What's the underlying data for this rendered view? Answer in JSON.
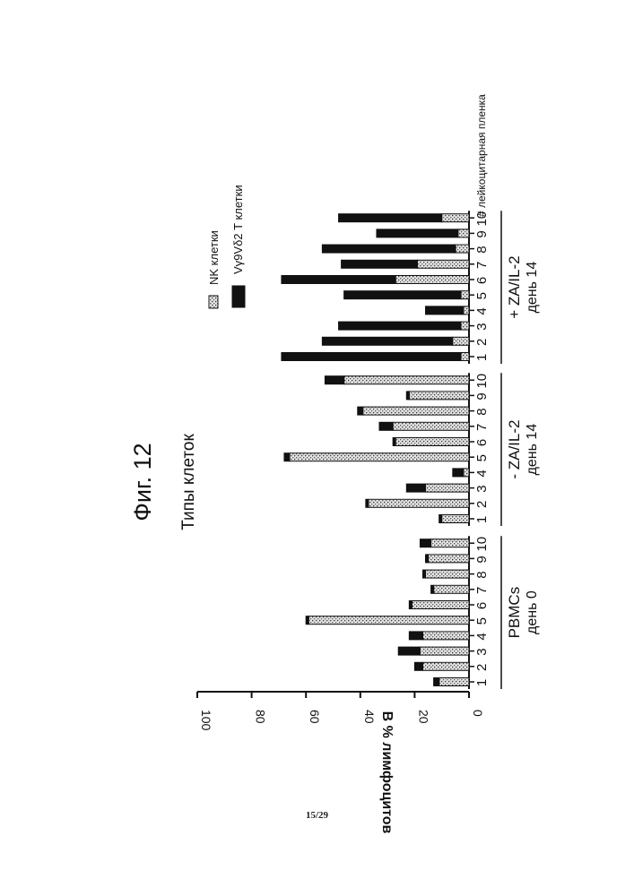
{
  "figure_label": "Фиг. 12",
  "page_number": "15/29",
  "chart_data": {
    "type": "bar",
    "title": "Типы клеток",
    "ylabel": "В % лимфоцитов",
    "ylim": [
      0,
      100
    ],
    "yticks": [
      0,
      20,
      40,
      60,
      80,
      100
    ],
    "xlabel": "# лейкоцитарная пленка",
    "groups": [
      {
        "label": "PBMCs",
        "sublabel": "день 0",
        "categories": [
          "1",
          "2",
          "3",
          "4",
          "5",
          "6",
          "7",
          "8",
          "9",
          "10"
        ]
      },
      {
        "label": "- ZA/IL-2",
        "sublabel": "день 14",
        "categories": [
          "1",
          "2",
          "3",
          "4",
          "5",
          "6",
          "7",
          "8",
          "9",
          "10"
        ]
      },
      {
        "label": "+ ZA/IL-2",
        "sublabel": "день 14",
        "categories": [
          "1",
          "2",
          "3",
          "4",
          "5",
          "6",
          "7",
          "8",
          "9",
          "10"
        ]
      }
    ],
    "series": [
      {
        "name": "NK клетки",
        "pattern": "stippled",
        "values": [
          11,
          17,
          18,
          17,
          59,
          21,
          13,
          16,
          15,
          14,
          10,
          37,
          16,
          2,
          66,
          27,
          28,
          39,
          22,
          46,
          3,
          6,
          3,
          2,
          3,
          27,
          19,
          5,
          4,
          10
        ]
      },
      {
        "name": "Vγ9Vδ2 T клетки",
        "pattern": "solid",
        "values": [
          2,
          3,
          8,
          5,
          1,
          1,
          1,
          1,
          1,
          4,
          1,
          1,
          7,
          4,
          2,
          1,
          5,
          2,
          1,
          7,
          66,
          48,
          45,
          14,
          43,
          42,
          28,
          49,
          30,
          38
        ]
      }
    ],
    "grid": false,
    "legend_position": "top"
  }
}
